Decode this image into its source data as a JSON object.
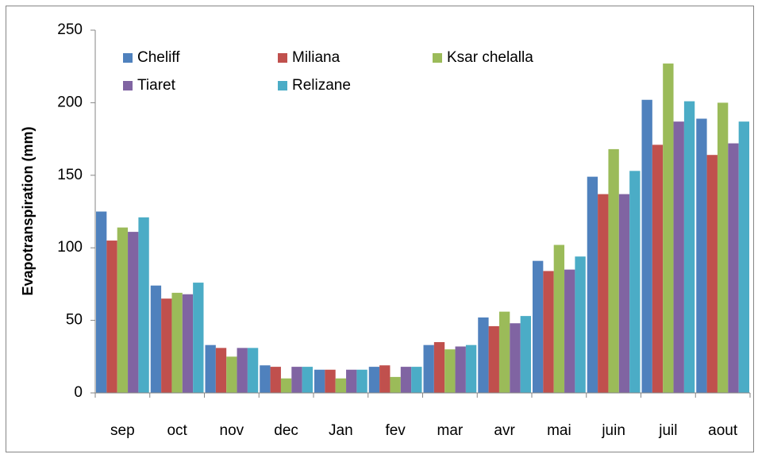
{
  "chart_data": {
    "type": "bar",
    "y_label": "Evapotranspiration (mm)",
    "categories": [
      "sep",
      "oct",
      "nov",
      "dec",
      "Jan",
      "fev",
      "mar",
      "avr",
      "mai",
      "juin",
      "juil",
      "aout"
    ],
    "series": [
      {
        "name": "Cheliff",
        "color": "#4f81bd",
        "values": [
          125,
          74,
          33,
          19,
          16,
          18,
          33,
          52,
          91,
          149,
          202,
          189
        ]
      },
      {
        "name": "Miliana",
        "color": "#c0504d",
        "values": [
          105,
          65,
          31,
          18,
          16,
          19,
          35,
          46,
          84,
          137,
          171,
          164
        ]
      },
      {
        "name": "Ksar chelalla",
        "color": "#9bbb59",
        "values": [
          114,
          69,
          25,
          10,
          10,
          11,
          30,
          56,
          102,
          168,
          227,
          200
        ]
      },
      {
        "name": "Tiaret",
        "color": "#8064a2",
        "values": [
          111,
          68,
          31,
          18,
          16,
          18,
          32,
          48,
          85,
          137,
          187,
          172
        ]
      },
      {
        "name": "Relizane",
        "color": "#4bacc6",
        "values": [
          121,
          76,
          31,
          18,
          16,
          18,
          33,
          53,
          94,
          153,
          201,
          187
        ]
      }
    ],
    "ylim": [
      0,
      250
    ],
    "yticks": [
      0,
      50,
      100,
      150,
      200,
      250
    ],
    "grid": false,
    "legend": "upper left"
  }
}
